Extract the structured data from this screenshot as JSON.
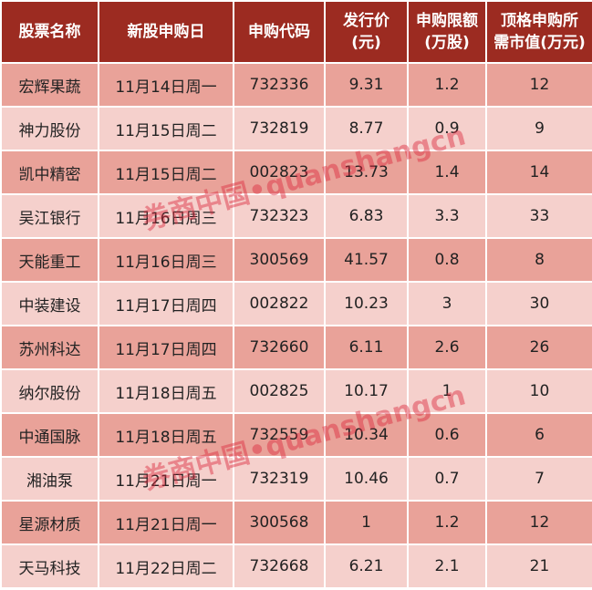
{
  "headers": [
    "股票名称",
    "新股申购日",
    "申购代码",
    "发行价\n(元)",
    "申购限额\n(万股)",
    "顶格申购所\n需市值(万元)"
  ],
  "rows": [
    [
      "宏辉果蔬",
      "11月14日周一",
      "732336",
      "9.31",
      "1.2",
      "12"
    ],
    [
      "神力股份",
      "11月15日周二",
      "732819",
      "8.77",
      "0.9",
      "9"
    ],
    [
      "凯中精密",
      "11月15日周二",
      "002823",
      "13.73",
      "1.4",
      "14"
    ],
    [
      "吴江银行",
      "11月16日周三",
      "732323",
      "6.83",
      "3.3",
      "33"
    ],
    [
      "天能重工",
      "11月16日周三",
      "300569",
      "41.57",
      "0.8",
      "8"
    ],
    [
      "中装建设",
      "11月17日周四",
      "002822",
      "10.23",
      "3",
      "30"
    ],
    [
      "苏州科达",
      "11月17日周四",
      "732660",
      "6.11",
      "2.6",
      "26"
    ],
    [
      "纳尔股份",
      "11月18日周五",
      "002825",
      "10.17",
      "1",
      "10"
    ],
    [
      "中通国脉",
      "11月18日周五",
      "732559",
      "10.34",
      "0.6",
      "6"
    ],
    [
      "湘油泵",
      "11月21日周一",
      "732319",
      "10.46",
      "0.7",
      "7"
    ],
    [
      "星源材质",
      "11月21日周一",
      "300568",
      "1",
      "1.2",
      "12"
    ],
    [
      "天马科技",
      "11月22日周二",
      "732668",
      "6.21",
      "2.1",
      "21"
    ]
  ],
  "watermark": "券商中国•quanshangcn",
  "colors": {
    "header": "#9c2b21",
    "row_dark": "#e9a299",
    "row_light": "#f5d0cc"
  }
}
